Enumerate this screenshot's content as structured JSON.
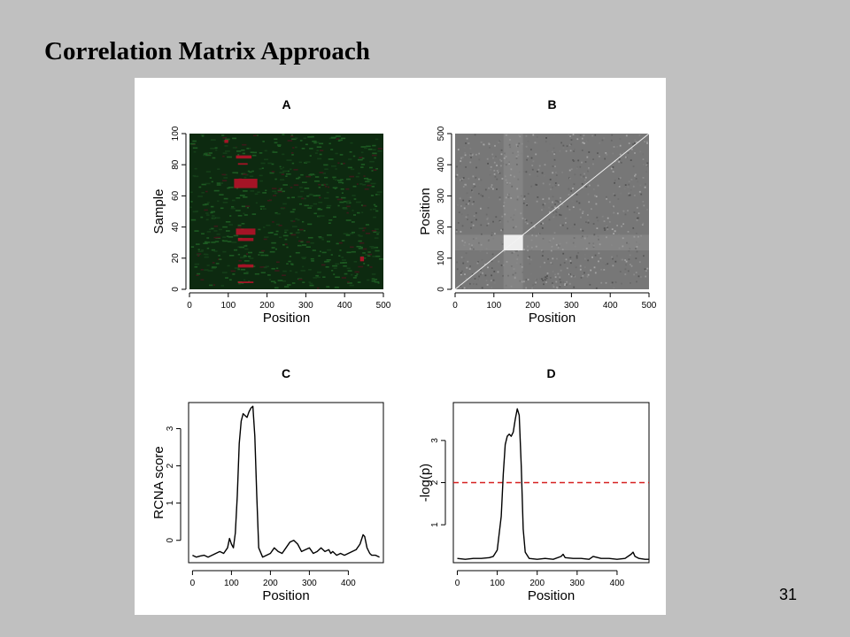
{
  "slide": {
    "title": "Correlation Matrix Approach",
    "page_number": "31"
  },
  "colors": {
    "slide_background": "#c0c0c0",
    "heatmap_background": "#0d2a10",
    "heatmap_amplified": "#c0102a",
    "correlation_background": "#777777",
    "correlation_block": "#eeeeee",
    "threshold_line": "#d62020",
    "curve": "#000000"
  },
  "chart_data": [
    {
      "panel": "A",
      "type": "heatmap",
      "title": "A",
      "xlabel": "Position",
      "ylabel": "Sample",
      "xlim": [
        0,
        500
      ],
      "ylim": [
        0,
        100
      ],
      "xticks": [
        0,
        100,
        200,
        300,
        400,
        500
      ],
      "yticks": [
        0,
        20,
        40,
        60,
        80,
        100
      ],
      "colorscale": [
        "green",
        "black",
        "red"
      ],
      "amplified_regions": [
        {
          "x": [
            120,
            160
          ],
          "y": [
            84,
            86
          ]
        },
        {
          "x": [
            125,
            150
          ],
          "y": [
            80,
            81
          ]
        },
        {
          "x": [
            115,
            175
          ],
          "y": [
            65,
            71
          ]
        },
        {
          "x": [
            120,
            170
          ],
          "y": [
            35,
            39
          ]
        },
        {
          "x": [
            125,
            165
          ],
          "y": [
            31,
            33
          ]
        },
        {
          "x": [
            125,
            165
          ],
          "y": [
            14,
            16
          ]
        },
        {
          "x": [
            125,
            165
          ],
          "y": [
            4,
            5
          ]
        },
        {
          "x": [
            440,
            450
          ],
          "y": [
            18,
            21
          ]
        },
        {
          "x": [
            90,
            100
          ],
          "y": [
            94,
            96
          ]
        }
      ]
    },
    {
      "panel": "B",
      "type": "heatmap",
      "title": "B",
      "xlabel": "Position",
      "ylabel": "Position",
      "xlim": [
        0,
        500
      ],
      "ylim": [
        0,
        500
      ],
      "xticks": [
        0,
        100,
        200,
        300,
        400,
        500
      ],
      "yticks": [
        0,
        100,
        200,
        300,
        400,
        500
      ],
      "colorscale": [
        "black",
        "white"
      ],
      "high_correlation_block": {
        "x": [
          125,
          175
        ],
        "y": [
          125,
          175
        ]
      },
      "diagonal": true
    },
    {
      "panel": "C",
      "type": "line",
      "title": "C",
      "xlabel": "Position",
      "ylabel": "RCNA score",
      "xlim": [
        -10,
        490
      ],
      "ylim": [
        -0.6,
        3.7
      ],
      "xticks": [
        0,
        100,
        200,
        300,
        400
      ],
      "yticks": [
        0,
        1,
        2,
        3
      ],
      "series": [
        {
          "x": [
            0,
            10,
            20,
            30,
            40,
            50,
            60,
            70,
            80,
            90,
            95,
            100,
            105,
            110,
            115,
            120,
            125,
            130,
            135,
            140,
            145,
            150,
            155,
            160,
            165,
            170,
            180,
            190,
            200,
            210,
            220,
            230,
            240,
            250,
            260,
            270,
            275,
            280,
            290,
            300,
            310,
            320,
            330,
            340,
            350,
            355,
            360,
            370,
            380,
            390,
            400,
            410,
            420,
            430,
            438,
            442,
            448,
            455,
            460,
            470,
            480
          ],
          "y": [
            -0.4,
            -0.45,
            -0.42,
            -0.4,
            -0.45,
            -0.4,
            -0.35,
            -0.3,
            -0.35,
            -0.2,
            0.05,
            -0.1,
            -0.2,
            0.2,
            1.2,
            2.6,
            3.2,
            3.4,
            3.35,
            3.3,
            3.45,
            3.55,
            3.6,
            2.8,
            1.2,
            -0.2,
            -0.45,
            -0.4,
            -0.35,
            -0.2,
            -0.3,
            -0.35,
            -0.2,
            -0.05,
            0.0,
            -0.1,
            -0.2,
            -0.3,
            -0.25,
            -0.2,
            -0.35,
            -0.3,
            -0.2,
            -0.3,
            -0.25,
            -0.35,
            -0.3,
            -0.4,
            -0.35,
            -0.4,
            -0.35,
            -0.3,
            -0.25,
            -0.1,
            0.15,
            0.1,
            -0.2,
            -0.35,
            -0.4,
            -0.4,
            -0.45
          ]
        }
      ]
    },
    {
      "panel": "D",
      "type": "line",
      "title": "D",
      "xlabel": "Position",
      "ylabel": "-log(p)",
      "xlim": [
        -10,
        480
      ],
      "ylim": [
        0.1,
        3.9
      ],
      "xticks": [
        0,
        100,
        200,
        300,
        400
      ],
      "yticks": [
        1,
        2,
        3
      ],
      "threshold": 2,
      "series": [
        {
          "x": [
            0,
            20,
            40,
            60,
            80,
            90,
            100,
            110,
            115,
            120,
            125,
            130,
            135,
            140,
            145,
            150,
            155,
            160,
            165,
            170,
            180,
            200,
            220,
            240,
            260,
            265,
            270,
            290,
            310,
            330,
            340,
            360,
            380,
            400,
            420,
            435,
            440,
            445,
            455,
            470,
            480
          ],
          "y": [
            0.2,
            0.18,
            0.2,
            0.2,
            0.22,
            0.25,
            0.4,
            1.2,
            2.2,
            2.9,
            3.1,
            3.15,
            3.1,
            3.2,
            3.5,
            3.75,
            3.6,
            2.4,
            0.9,
            0.35,
            0.2,
            0.18,
            0.2,
            0.18,
            0.25,
            0.3,
            0.22,
            0.2,
            0.2,
            0.18,
            0.25,
            0.2,
            0.2,
            0.18,
            0.2,
            0.3,
            0.35,
            0.25,
            0.2,
            0.18,
            0.18
          ]
        }
      ]
    }
  ]
}
